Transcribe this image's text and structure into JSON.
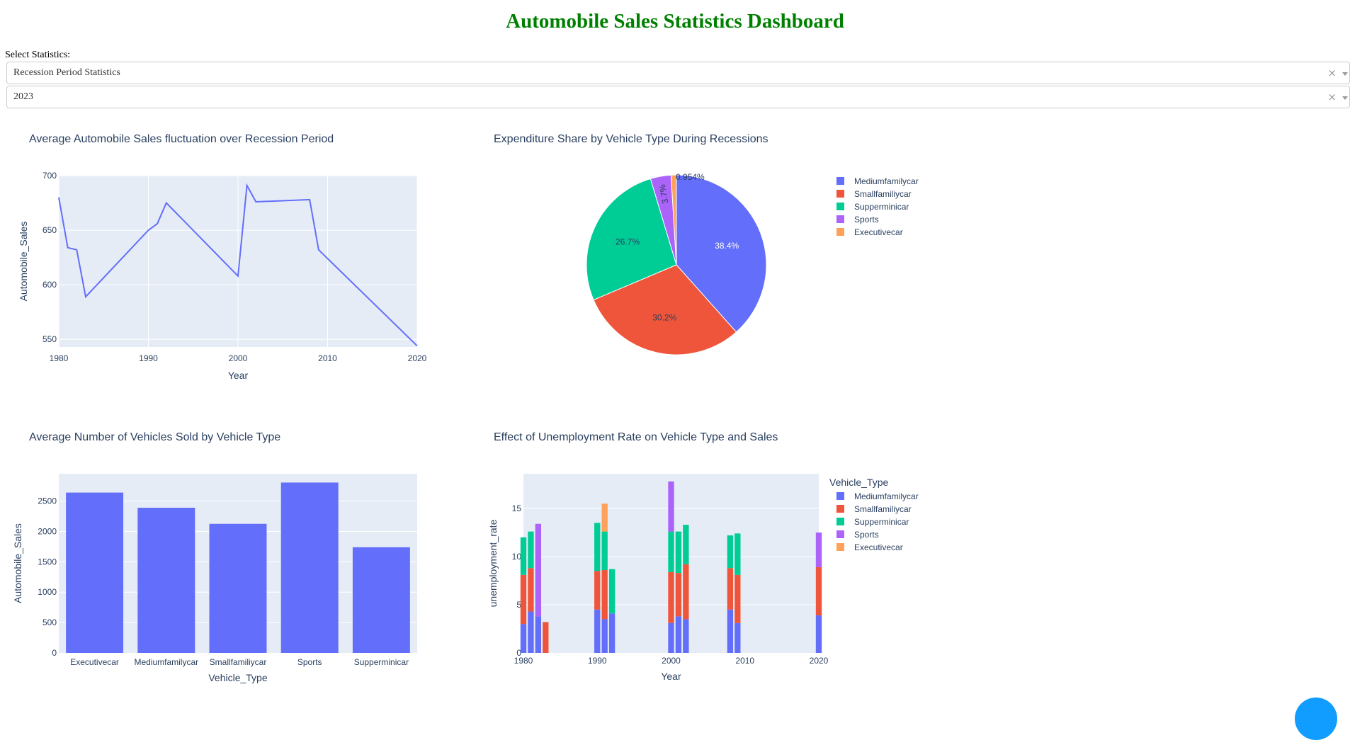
{
  "header": {
    "title": "Automobile Sales Statistics Dashboard"
  },
  "controls": {
    "select_label": "Select Statistics:",
    "statistics_dropdown": {
      "value": "Recession Period Statistics"
    },
    "year_dropdown": {
      "value": "2023"
    }
  },
  "colors": {
    "Mediumfamilycar": "#636efa",
    "Smallfamiliycar": "#EF553B",
    "Supperminicar": "#00cc96",
    "Sports": "#ab63fa",
    "Executivecar": "#FFA15A",
    "plot_bg": "#E5ECF6",
    "title_green": "#008000"
  },
  "chart_data": [
    {
      "type": "line",
      "title": "Average Automobile Sales fluctuation over Recession Period",
      "xlabel": "Year",
      "ylabel": "Automobile_Sales",
      "xlim": [
        1980,
        2020
      ],
      "ylim": [
        543,
        700
      ],
      "xticks": [
        1980,
        1990,
        2000,
        2010,
        2020
      ],
      "yticks": [
        550,
        600,
        650,
        700
      ],
      "x": [
        1980,
        1981,
        1982,
        1983,
        1990,
        1991,
        1992,
        2000,
        2001,
        2002,
        2008,
        2009,
        2020
      ],
      "y": [
        680,
        634,
        632,
        589,
        650,
        656,
        675,
        608,
        691,
        676,
        678,
        632,
        544
      ],
      "grid": true
    },
    {
      "type": "pie",
      "title": "Expenditure Share by Vehicle Type During Recessions",
      "labels": [
        "Mediumfamilycar",
        "Smallfamiliycar",
        "Supperminicar",
        "Sports",
        "Executivecar"
      ],
      "values": [
        38.4,
        30.2,
        26.7,
        3.7,
        0.954
      ],
      "text_labels": [
        "38.4%",
        "30.2%",
        "26.7%",
        "3.7%",
        "0.954%"
      ],
      "legend": "right"
    },
    {
      "type": "bar",
      "title": "Average Number of Vehicles Sold by Vehicle Type",
      "xlabel": "Vehicle_Type",
      "ylabel": "Automobile_Sales",
      "categories": [
        "Executivecar",
        "Mediumfamilycar",
        "Smallfamiliycar",
        "Sports",
        "Supperminicar"
      ],
      "values": [
        2640,
        2390,
        2125,
        2805,
        1740
      ],
      "ylim": [
        0,
        2950
      ],
      "yticks": [
        0,
        500,
        1000,
        1500,
        2000,
        2500
      ],
      "grid": true
    },
    {
      "type": "bar",
      "stacked": true,
      "title": "Effect of Unemployment Rate on Vehicle Type and Sales",
      "xlabel": "Year",
      "ylabel": "unemployment_rate",
      "legend_title": "Vehicle_Type",
      "xlim": [
        1980,
        2020
      ],
      "ylim": [
        0,
        18.6
      ],
      "xticks": [
        1980,
        1990,
        2000,
        2010,
        2020
      ],
      "yticks": [
        0,
        5,
        10,
        15
      ],
      "x": [
        1980,
        1981,
        1982,
        1983,
        1990,
        1991,
        1992,
        2000,
        2001,
        2002,
        2008,
        2009,
        2020
      ],
      "series": [
        {
          "name": "Mediumfamilycar",
          "values": [
            3,
            4.3,
            3.8,
            0,
            4.5,
            3.5,
            4.1,
            3.1,
            3.8,
            3.5,
            4.5,
            3.1,
            3.9
          ]
        },
        {
          "name": "Smallfamiliycar",
          "values": [
            5.1,
            4.5,
            0,
            3.2,
            4,
            5.1,
            0,
            5.3,
            4.5,
            5.7,
            4.3,
            5,
            5
          ]
        },
        {
          "name": "Supperminicar",
          "values": [
            3.9,
            3.8,
            0,
            0,
            5,
            4,
            4.6,
            4.2,
            4.3,
            4.1,
            3.4,
            4.3,
            0
          ]
        },
        {
          "name": "Sports",
          "values": [
            0,
            0,
            9.6,
            0,
            0,
            0,
            0,
            5.2,
            0,
            0,
            0,
            0,
            3.6
          ]
        },
        {
          "name": "Executivecar",
          "values": [
            0,
            0,
            0,
            0,
            0,
            2.9,
            0,
            0,
            0,
            0,
            0,
            0,
            0
          ]
        }
      ]
    }
  ]
}
